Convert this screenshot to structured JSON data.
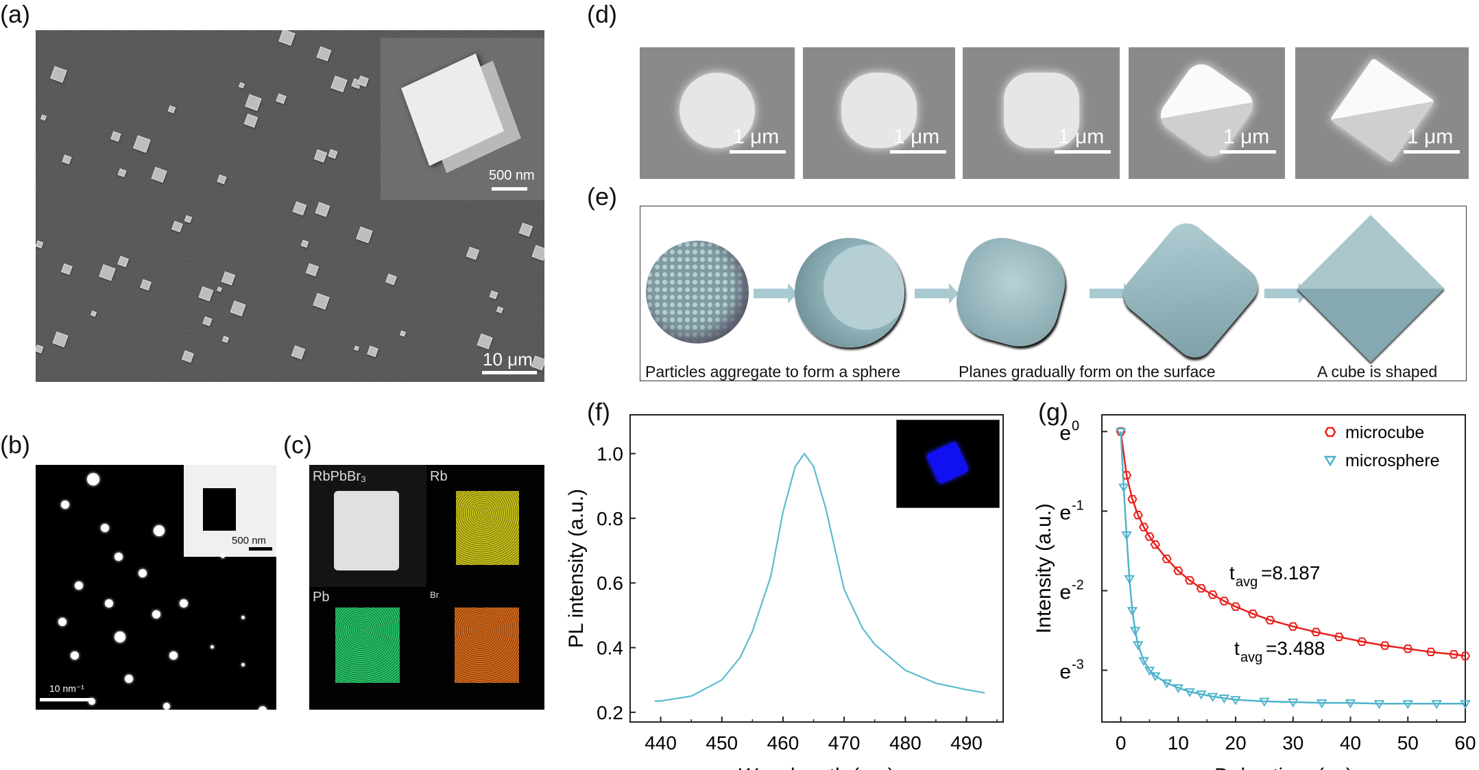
{
  "panel_labels": {
    "a": "(a)",
    "b": "(b)",
    "c": "(c)",
    "d": "(d)",
    "e": "(e)",
    "f": "(f)",
    "g": "(g)"
  },
  "panel_a": {
    "scale_bar": "10 μm",
    "inset_scale_bar": "500 nm"
  },
  "panel_b": {
    "scale_bar": "10 nm⁻¹",
    "inset_scale_bar": "500 nm"
  },
  "panel_c": {
    "maps": [
      {
        "label": "RbPbBr₃",
        "color": "#e0e0e0"
      },
      {
        "label": "Rb",
        "color": "#c8c21a"
      },
      {
        "label": "Pb",
        "color": "#27c46a"
      },
      {
        "label": "Br",
        "color": "#d8691a"
      }
    ]
  },
  "panel_d": {
    "tiles": [
      {
        "scale_bar": "1 μm"
      },
      {
        "scale_bar": "1 μm"
      },
      {
        "scale_bar": "1 μm"
      },
      {
        "scale_bar": "1 μm"
      },
      {
        "scale_bar": "1 μm"
      }
    ]
  },
  "panel_e": {
    "captions": [
      "Particles aggregate to form a sphere",
      "Planes gradually form on the surface",
      "A cube is shaped"
    ]
  },
  "chart_data": [
    {
      "type": "line",
      "title": "",
      "xlabel": "Wavelength (nm)",
      "ylabel": "PL intensity (a.u.)",
      "xlim": [
        435,
        496
      ],
      "ylim": [
        0.17,
        1.12
      ],
      "xticks": [
        "440",
        "450",
        "460",
        "470",
        "480",
        "490"
      ],
      "yticks": [
        "0.2",
        "0.4",
        "0.6",
        "0.8",
        "1.0"
      ],
      "line_color": "#5bbcd0",
      "series": [
        {
          "name": "PL",
          "x": [
            439,
            440,
            445,
            450,
            453,
            455,
            458,
            460,
            462,
            463.5,
            465,
            467,
            470,
            473,
            475,
            480,
            485,
            490,
            493
          ],
          "y": [
            0.235,
            0.235,
            0.25,
            0.3,
            0.37,
            0.45,
            0.62,
            0.82,
            0.96,
            1.0,
            0.96,
            0.83,
            0.58,
            0.46,
            0.41,
            0.33,
            0.29,
            0.27,
            0.26
          ]
        }
      ]
    },
    {
      "type": "scatter",
      "title": "",
      "xlabel": "Delay time (ns)",
      "ylabel": "Intensity (a.u.)",
      "xlim": [
        -3.3,
        60
      ],
      "ylim": [
        -3.65,
        0.21
      ],
      "xticks": [
        "0",
        "10",
        "20",
        "30",
        "40",
        "50",
        "60"
      ],
      "yticks": [
        {
          "base": "e",
          "exp": "0"
        },
        {
          "base": "e",
          "exp": "-1"
        },
        {
          "base": "e",
          "exp": "-2"
        },
        {
          "base": "e",
          "exp": "-3"
        }
      ],
      "yscale": "ln",
      "annotations": [
        {
          "sym": "t",
          "sub": "avg",
          "value": "=8.187"
        },
        {
          "sym": "t",
          "sub": "avg",
          "value": "=3.488"
        }
      ],
      "legend_position": "top-right",
      "series": [
        {
          "name": "microcube",
          "color": "#e8201c",
          "marker": "hexagon",
          "x": [
            0,
            1,
            2,
            3,
            4,
            5,
            6,
            8,
            10,
            12,
            14,
            16,
            18,
            20,
            23,
            26,
            30,
            34,
            38,
            42,
            46,
            50,
            54,
            58,
            60
          ],
          "y": [
            0,
            -0.55,
            -0.85,
            -1.05,
            -1.2,
            -1.32,
            -1.42,
            -1.6,
            -1.75,
            -1.87,
            -1.97,
            -2.05,
            -2.13,
            -2.2,
            -2.29,
            -2.37,
            -2.45,
            -2.52,
            -2.58,
            -2.64,
            -2.69,
            -2.73,
            -2.77,
            -2.8,
            -2.82
          ]
        },
        {
          "name": "microsphere",
          "color": "#4fb3cc",
          "marker": "triangle-down",
          "x": [
            0,
            0.5,
            1,
            1.5,
            2,
            2.5,
            3,
            4,
            5,
            6,
            8,
            10,
            12,
            14,
            16,
            18,
            20,
            25,
            30,
            35,
            40,
            45,
            50,
            55,
            60
          ],
          "y": [
            0,
            -0.7,
            -1.3,
            -1.85,
            -2.25,
            -2.5,
            -2.68,
            -2.88,
            -3.0,
            -3.07,
            -3.16,
            -3.22,
            -3.27,
            -3.3,
            -3.33,
            -3.35,
            -3.37,
            -3.39,
            -3.4,
            -3.41,
            -3.41,
            -3.42,
            -3.42,
            -3.42,
            -3.42
          ]
        }
      ]
    }
  ]
}
